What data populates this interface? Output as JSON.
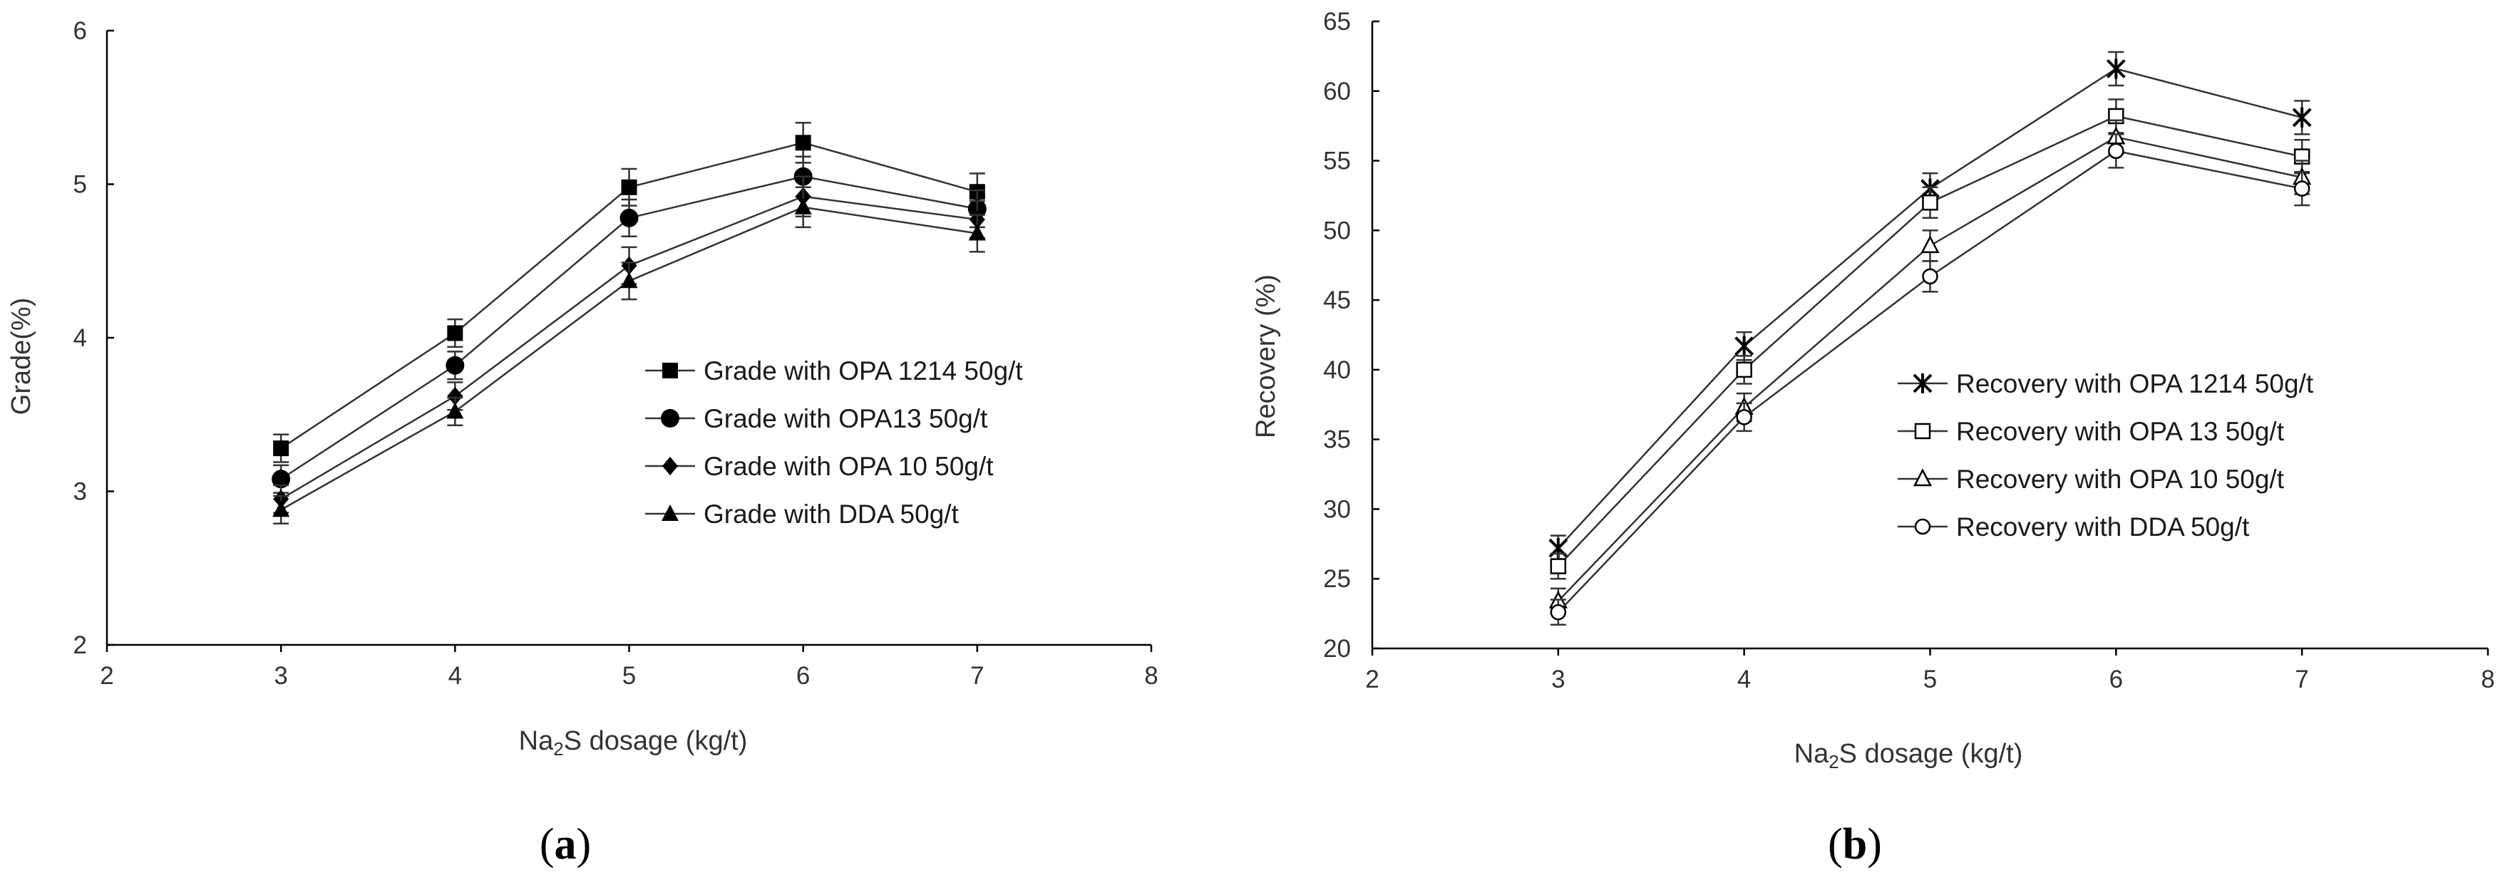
{
  "colors": {
    "line": "#333333",
    "axis": "#000000",
    "marker": "#000000",
    "background": "#ffffff"
  },
  "chart_data": [
    {
      "type": "line",
      "panel_label": "(a)",
      "panel_letter": "a",
      "xlabel_prefix": "Na",
      "xlabel_sub": "2",
      "xlabel_suffix": "S dosage (kg/t)",
      "ylabel": "Grade(%)",
      "xlim": [
        2,
        8
      ],
      "ylim": [
        2,
        6
      ],
      "x_ticks": [
        2,
        3,
        4,
        5,
        6,
        7,
        8
      ],
      "y_ticks": [
        2,
        3,
        4,
        5,
        6
      ],
      "x": [
        3,
        4,
        5,
        6,
        7
      ],
      "series": [
        {
          "name": "Grade with OPA 1214 50g/t",
          "marker": "filled-square",
          "values": [
            3.28,
            4.03,
            4.98,
            5.27,
            4.95
          ],
          "error": [
            0.09,
            0.09,
            0.12,
            0.13,
            0.12
          ]
        },
        {
          "name": "Grade with OPA13 50g/t",
          "marker": "filled-circle",
          "values": [
            3.08,
            3.82,
            4.78,
            5.05,
            4.84
          ],
          "error": [
            0.09,
            0.09,
            0.12,
            0.13,
            0.12
          ]
        },
        {
          "name": "Grade with OPA 10 50g/t",
          "marker": "filled-diamond",
          "values": [
            2.95,
            3.62,
            4.47,
            4.92,
            4.77
          ],
          "error": [
            0.09,
            0.09,
            0.12,
            0.13,
            0.12
          ]
        },
        {
          "name": "Grade with DDA 50g/t",
          "marker": "filled-triangle",
          "values": [
            2.88,
            3.52,
            4.37,
            4.85,
            4.68
          ],
          "error": [
            0.09,
            0.09,
            0.12,
            0.13,
            0.12
          ]
        }
      ],
      "legend_position": "right-center"
    },
    {
      "type": "line",
      "panel_label": "(b)",
      "panel_letter": "b",
      "xlabel_prefix": "Na",
      "xlabel_sub": "2",
      "xlabel_suffix": "S dosage (kg/t)",
      "ylabel": "Recovery (%)",
      "xlim": [
        2,
        8
      ],
      "ylim": [
        20,
        65
      ],
      "x_ticks": [
        2,
        3,
        4,
        5,
        6,
        7,
        8
      ],
      "y_ticks": [
        20,
        25,
        30,
        35,
        40,
        45,
        50,
        55,
        60,
        65
      ],
      "x": [
        3,
        4,
        5,
        6,
        7
      ],
      "series": [
        {
          "name": "Recovery with OPA 1214 50g/t",
          "marker": "asterisk",
          "values": [
            27.2,
            41.7,
            53.0,
            61.6,
            58.1
          ],
          "error": [
            0.9,
            1.0,
            1.1,
            1.2,
            1.2
          ]
        },
        {
          "name": "Recovery with OPA 13 50g/t",
          "marker": "open-square",
          "values": [
            25.9,
            40.0,
            52.0,
            58.2,
            55.3
          ],
          "error": [
            0.9,
            1.0,
            1.1,
            1.2,
            1.2
          ]
        },
        {
          "name": "Recovery with OPA 10 50g/t",
          "marker": "open-triangle",
          "values": [
            23.4,
            37.3,
            48.9,
            56.7,
            53.8
          ],
          "error": [
            0.9,
            1.0,
            1.1,
            1.2,
            1.2
          ]
        },
        {
          "name": "Recovery with DDA 50g/t",
          "marker": "open-circle",
          "values": [
            22.6,
            36.6,
            46.7,
            55.7,
            53.0
          ],
          "error": [
            0.9,
            1.0,
            1.1,
            1.2,
            1.2
          ]
        }
      ],
      "legend_position": "right-center"
    }
  ]
}
